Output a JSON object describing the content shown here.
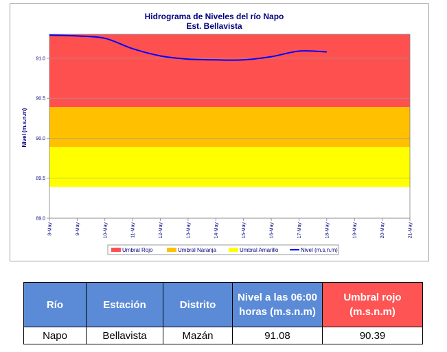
{
  "chart_data": {
    "type": "line",
    "title": "Hidrograma de Niveles del río Napo",
    "subtitle": "Est. Bellavista",
    "ylabel": "Nivel (m.s.n.m)",
    "ylim": [
      89.0,
      91.3
    ],
    "y_ticks": [
      "89.0",
      "89.5",
      "90.0",
      "90.5",
      "91.0"
    ],
    "x_ticks": [
      "8-May",
      "9-May",
      "10-May",
      "11-May",
      "12-May",
      "13-May",
      "14-May",
      "15-May",
      "16-May",
      "17-May",
      "18-May",
      "19-May",
      "20-May",
      "21-May"
    ],
    "x_start": "2023-05-08",
    "x_end": "2023-05-21",
    "thresholds": [
      {
        "name": "Umbral Rojo",
        "from": 90.39,
        "to": 91.3,
        "color": "#ff5050"
      },
      {
        "name": "Umbral Naranja",
        "from": 89.89,
        "to": 90.39,
        "color": "#ffc000"
      },
      {
        "name": "Umbral Amarillo",
        "from": 89.39,
        "to": 89.89,
        "color": "#ffff00"
      }
    ],
    "series": [
      {
        "name": "Nivel (m.s.n.m)",
        "color": "#0000ff",
        "x": [
          "2023-05-08",
          "2023-05-09",
          "2023-05-10",
          "2023-05-11",
          "2023-05-12",
          "2023-05-13",
          "2023-05-14",
          "2023-05-15",
          "2023-05-16",
          "2023-05-17",
          "2023-05-18"
        ],
        "values": [
          91.29,
          91.28,
          91.25,
          91.12,
          91.03,
          90.99,
          90.98,
          90.98,
          91.02,
          91.09,
          91.08
        ]
      }
    ],
    "legend": [
      "Umbral Rojo",
      "Umbral Naranja",
      "Umbral Amarillo",
      "Nivel (m.s.n.m)"
    ],
    "legend_position": "bottom"
  },
  "table": {
    "headers": [
      "Río",
      "Estación",
      "Distrito",
      "Nivel a las 06:00 horas (m.s.n.m)",
      "Umbral rojo (m.s.n.m)"
    ],
    "row": [
      "Napo",
      "Bellavista",
      "Mazán",
      "91.08",
      "90.39"
    ]
  }
}
